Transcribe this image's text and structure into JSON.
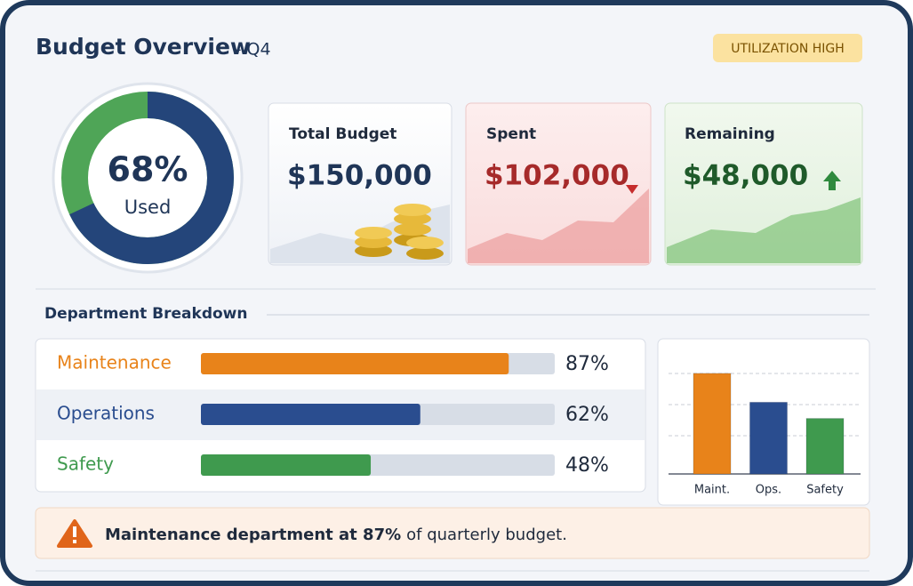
{
  "header": {
    "title": "Budget Overview",
    "subtitle": "– Q4",
    "badge": "UTILIZATION HIGH"
  },
  "gauge": {
    "value": 68,
    "label": "68%",
    "caption": "Used"
  },
  "cards": [
    {
      "title": "Total Budget",
      "value": "$150,000"
    },
    {
      "title": "Spent",
      "value": "$102,000"
    },
    {
      "title": "Remaining",
      "value": "$48,000"
    }
  ],
  "breakdown": {
    "title": "Department Breakdown",
    "rows": [
      {
        "name": "Maintenance",
        "value": 87,
        "label": "87%",
        "color": "#e8831a"
      },
      {
        "name": "Operations",
        "value": 62,
        "label": "62%",
        "color": "#2a4d8f"
      },
      {
        "name": "Safety",
        "value": 48,
        "label": "48%",
        "color": "#3f9a4e"
      }
    ]
  },
  "mini_chart": {
    "categories": [
      "Maint.",
      "Ops.",
      "Safety"
    ]
  },
  "alert": {
    "strong": "Maintenance department at 87%",
    "text": "of quarterly budget."
  }
}
